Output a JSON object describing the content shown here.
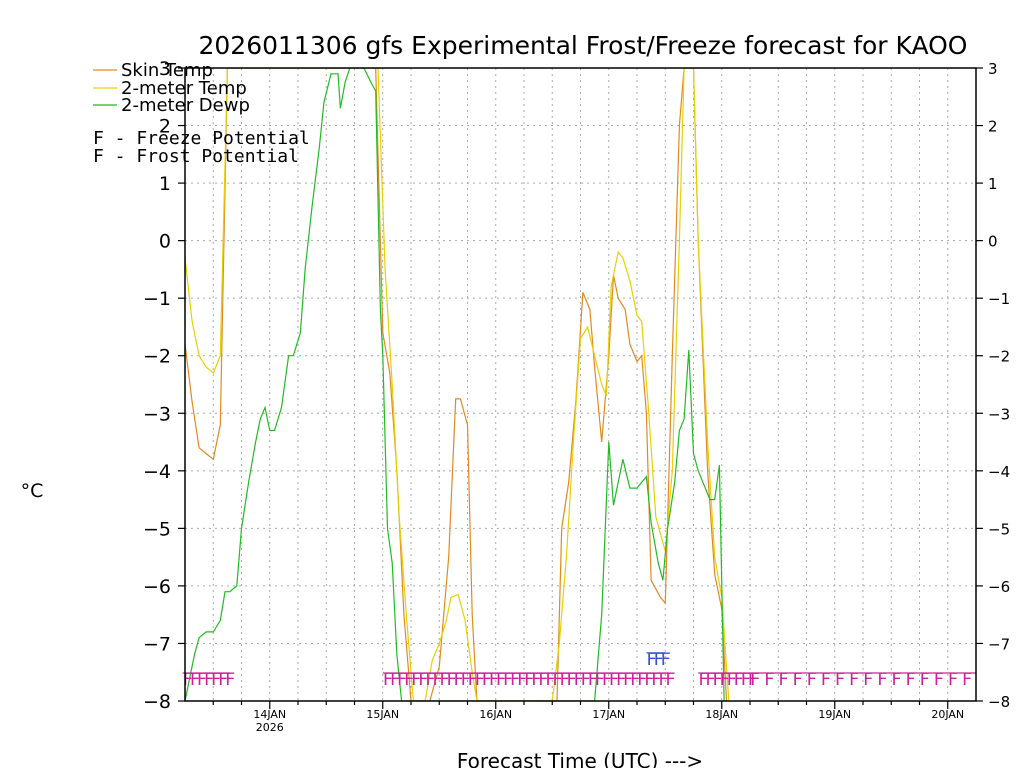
{
  "chart_data": {
    "type": "line",
    "title": "2026011306 gfs Experimental Frost/Freeze forecast for KAOO",
    "ylabel": "°C",
    "xlabel": "Forecast Time (UTC) --->",
    "ylim": [
      -8,
      3
    ],
    "y_ticks": [
      -8,
      -7,
      -6,
      -5,
      -4,
      -3,
      -2,
      -1,
      0,
      1,
      2,
      3
    ],
    "x_range_hours": [
      6,
      174
    ],
    "x_ticks": [
      {
        "hour": 24,
        "label": "14JAN",
        "sublabel": "2026"
      },
      {
        "hour": 48,
        "label": "15JAN",
        "sublabel": ""
      },
      {
        "hour": 72,
        "label": "16JAN",
        "sublabel": ""
      },
      {
        "hour": 96,
        "label": "17JAN",
        "sublabel": ""
      },
      {
        "hour": 120,
        "label": "18JAN",
        "sublabel": ""
      },
      {
        "hour": 144,
        "label": "19JAN",
        "sublabel": ""
      },
      {
        "hour": 168,
        "label": "20JAN",
        "sublabel": ""
      }
    ],
    "grid": true,
    "series": [
      {
        "name": "Skin Temp",
        "color": "#e08a20",
        "points": [
          [
            6,
            -1.8
          ],
          [
            7.5,
            -2.8
          ],
          [
            9,
            -3.6
          ],
          [
            10.5,
            -3.7
          ],
          [
            12,
            -3.8
          ],
          [
            13.5,
            -3.2
          ],
          [
            15,
            3.0
          ],
          [
            16.5,
            3.0
          ],
          [
            42,
            3.0
          ],
          [
            45,
            3.0
          ],
          [
            46.5,
            3.0
          ],
          [
            48,
            -1.6
          ],
          [
            49.5,
            -2.3
          ],
          [
            51,
            -4.0
          ],
          [
            52.5,
            -6.5
          ],
          [
            54,
            -8
          ],
          [
            58,
            -8
          ],
          [
            60,
            -7.4
          ],
          [
            62,
            -5.5
          ],
          [
            63.5,
            -2.75
          ],
          [
            64.5,
            -2.75
          ],
          [
            66,
            -3.2
          ],
          [
            67,
            -6.5
          ],
          [
            68,
            -8
          ],
          [
            85,
            -8
          ],
          [
            86,
            -5.0
          ],
          [
            87.5,
            -4.2
          ],
          [
            89,
            -2.8
          ],
          [
            90.5,
            -0.9
          ],
          [
            92,
            -1.2
          ],
          [
            93,
            -2.2
          ],
          [
            94.5,
            -3.5
          ],
          [
            96,
            -2.0
          ],
          [
            97,
            -0.6
          ],
          [
            98,
            -1.0
          ],
          [
            99.5,
            -1.2
          ],
          [
            100.5,
            -1.8
          ],
          [
            102,
            -2.1
          ],
          [
            103,
            -2.0
          ],
          [
            104,
            -3.0
          ],
          [
            105,
            -5.9
          ],
          [
            107,
            -6.2
          ],
          [
            108,
            -6.3
          ],
          [
            109.5,
            -2.0
          ],
          [
            111,
            2.0
          ],
          [
            112,
            3.0
          ],
          [
            114,
            3.0
          ],
          [
            115,
            0.0
          ],
          [
            117,
            -4.0
          ],
          [
            118.5,
            -5.8
          ],
          [
            120,
            -6.4
          ],
          [
            121,
            -8
          ]
        ]
      },
      {
        "name": "2-meter Temp",
        "color": "#e8d000",
        "points": [
          [
            6,
            -0.3
          ],
          [
            7.5,
            -1.4
          ],
          [
            9,
            -2.0
          ],
          [
            10.5,
            -2.2
          ],
          [
            12,
            -2.3
          ],
          [
            13.5,
            -2.0
          ],
          [
            15,
            3.0
          ],
          [
            16.5,
            3.0
          ],
          [
            42,
            3.0
          ],
          [
            45,
            3.0
          ],
          [
            47,
            3.0
          ],
          [
            48.5,
            -0.5
          ],
          [
            50,
            -2.5
          ],
          [
            51.5,
            -4.8
          ],
          [
            53,
            -6.5
          ],
          [
            54.5,
            -8
          ],
          [
            57,
            -8
          ],
          [
            58.5,
            -7.3
          ],
          [
            60,
            -7.0
          ],
          [
            61.5,
            -6.6
          ],
          [
            62.5,
            -6.2
          ],
          [
            64,
            -6.15
          ],
          [
            65.5,
            -6.6
          ],
          [
            67,
            -7.5
          ],
          [
            68,
            -8
          ],
          [
            84,
            -8
          ],
          [
            85.5,
            -7.0
          ],
          [
            87,
            -5.5
          ],
          [
            88.5,
            -3.5
          ],
          [
            90,
            -1.7
          ],
          [
            91.5,
            -1.5
          ],
          [
            93,
            -2.0
          ],
          [
            94.5,
            -2.5
          ],
          [
            95.5,
            -2.7
          ],
          [
            96.5,
            -0.8
          ],
          [
            98,
            -0.2
          ],
          [
            99,
            -0.3
          ],
          [
            100.5,
            -0.7
          ],
          [
            102,
            -1.3
          ],
          [
            103,
            -1.4
          ],
          [
            104.5,
            -3.0
          ],
          [
            106,
            -4.8
          ],
          [
            108,
            -5.4
          ],
          [
            109.5,
            -4.0
          ],
          [
            111,
            0.0
          ],
          [
            112,
            3.0
          ],
          [
            114,
            3.0
          ],
          [
            115,
            0.0
          ],
          [
            117,
            -3.5
          ],
          [
            118.5,
            -5.5
          ],
          [
            120,
            -6.2
          ],
          [
            121.5,
            -8
          ]
        ]
      },
      {
        "name": "2-meter Dewp",
        "color": "#22bb22",
        "points": [
          [
            6,
            -8
          ],
          [
            7,
            -7.6
          ],
          [
            8,
            -7.2
          ],
          [
            9,
            -6.9
          ],
          [
            10.5,
            -6.8
          ],
          [
            12,
            -6.8
          ],
          [
            13.5,
            -6.6
          ],
          [
            14.5,
            -6.1
          ],
          [
            15.5,
            -6.1
          ],
          [
            17,
            -6.0
          ],
          [
            18,
            -5.0
          ],
          [
            19.5,
            -4.2
          ],
          [
            21,
            -3.5
          ],
          [
            22,
            -3.1
          ],
          [
            23,
            -2.9
          ],
          [
            24,
            -3.3
          ],
          [
            25,
            -3.3
          ],
          [
            26.5,
            -2.9
          ],
          [
            28,
            -2.0
          ],
          [
            29,
            -2.0
          ],
          [
            30.5,
            -1.6
          ],
          [
            31.5,
            -0.5
          ],
          [
            33,
            0.6
          ],
          [
            34.5,
            1.6
          ],
          [
            35.5,
            2.4
          ],
          [
            37,
            2.9
          ],
          [
            38.5,
            2.9
          ],
          [
            39,
            2.3
          ],
          [
            40,
            2.75
          ],
          [
            41,
            3.0
          ],
          [
            42.5,
            3.0
          ],
          [
            44,
            3.0
          ],
          [
            45.5,
            2.75
          ],
          [
            46.5,
            2.6
          ],
          [
            47.5,
            -1.2
          ],
          [
            48,
            -2.0
          ],
          [
            49,
            -5.0
          ],
          [
            50,
            -5.6
          ],
          [
            51,
            -7.2
          ],
          [
            52,
            -8
          ],
          [
            93,
            -8
          ],
          [
            94.5,
            -6.5
          ],
          [
            96,
            -3.5
          ],
          [
            97,
            -4.6
          ],
          [
            98,
            -4.2
          ],
          [
            99,
            -3.8
          ],
          [
            100.5,
            -4.3
          ],
          [
            102,
            -4.3
          ],
          [
            103,
            -4.2
          ],
          [
            104,
            -4.1
          ],
          [
            105,
            -4.9
          ],
          [
            106.5,
            -5.6
          ],
          [
            107.5,
            -5.9
          ],
          [
            108.5,
            -5.0
          ],
          [
            110,
            -4.2
          ],
          [
            111,
            -3.3
          ],
          [
            112,
            -3.1
          ],
          [
            113,
            -1.9
          ],
          [
            114,
            -3.7
          ],
          [
            115,
            -4.0
          ],
          [
            116,
            -4.2
          ],
          [
            117.5,
            -4.5
          ],
          [
            118.5,
            -4.5
          ],
          [
            119.5,
            -3.9
          ],
          [
            120.5,
            -8
          ]
        ]
      }
    ],
    "legend": {
      "series_labels": [
        "Skin Temp",
        "2-meter Temp",
        "2-meter Dewp"
      ],
      "freeze_label": "F - Freeze Potential",
      "frost_label": "F - Frost Potential"
    },
    "annotations": {
      "freeze_marker": "F",
      "freeze_color": "#cc2299",
      "frost_marker": "F",
      "frost_color": "#3355cc",
      "freeze_level": -7.6,
      "frost_level": -7.25,
      "freeze_segments": [
        {
          "start_hour": 5.5,
          "end_hour": 15.5,
          "step_hours": 1.5
        },
        {
          "start_hour": 48,
          "end_hour": 109,
          "step_hours": 1.5
        },
        {
          "start_hour": 115,
          "end_hour": 126,
          "step_hours": 1.5
        },
        {
          "start_hour": 126,
          "end_hour": 174,
          "step_hours": 3
        }
      ],
      "frost_segments": [
        {
          "start_hour": 104,
          "end_hour": 108,
          "step_hours": 1.5
        }
      ]
    }
  }
}
